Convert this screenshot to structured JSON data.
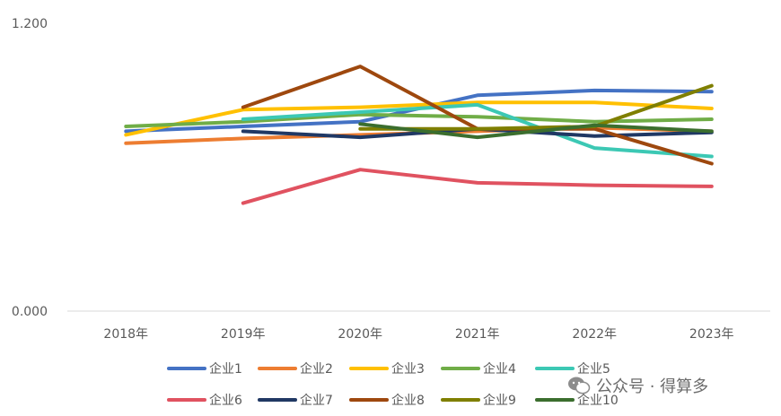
{
  "chart_data": {
    "type": "line",
    "title": "",
    "xlabel": "",
    "ylabel": "",
    "ylim": [
      0,
      1.2
    ],
    "y_tick_labels": [
      "0.000",
      "1.200"
    ],
    "categories": [
      "2018年",
      "2019年",
      "2020年",
      "2021年",
      "2022年",
      "2023年"
    ],
    "legend_position": "bottom",
    "grid": false,
    "series": [
      {
        "name": "企业1",
        "color": "#4472C4",
        "values": [
          0.75,
          0.77,
          0.79,
          0.9,
          0.92,
          0.915
        ]
      },
      {
        "name": "企业2",
        "color": "#ED7D31",
        "values": [
          0.7,
          0.72,
          0.735,
          0.75,
          0.765,
          0.75
        ]
      },
      {
        "name": "企业3",
        "color": "#FFC000",
        "values": [
          0.735,
          0.84,
          0.85,
          0.87,
          0.87,
          0.845
        ]
      },
      {
        "name": "企业4",
        "color": "#70AD47",
        "values": [
          0.77,
          0.79,
          0.82,
          0.81,
          0.79,
          0.8
        ]
      },
      {
        "name": "企业5",
        "color": "#3CC8B4",
        "values": [
          null,
          0.8,
          0.83,
          0.86,
          0.68,
          0.645
        ]
      },
      {
        "name": "企业6",
        "color": "#E05260",
        "values": [
          null,
          0.45,
          0.59,
          0.535,
          0.525,
          0.52
        ]
      },
      {
        "name": "企业7",
        "color": "#203864",
        "values": [
          null,
          0.75,
          0.725,
          0.76,
          0.73,
          0.745
        ]
      },
      {
        "name": "企业8",
        "color": "#9E480E",
        "values": [
          null,
          0.85,
          1.02,
          0.76,
          0.76,
          0.615
        ]
      },
      {
        "name": "企业9",
        "color": "#7F7F00",
        "values": [
          null,
          null,
          0.76,
          0.76,
          0.77,
          0.94
        ]
      },
      {
        "name": "企业10",
        "color": "#3B6E2E",
        "values": [
          null,
          null,
          0.78,
          0.725,
          0.775,
          0.75
        ]
      }
    ]
  },
  "watermark": {
    "text": "公众号 · 得算多",
    "icon": "wechat-icon"
  }
}
